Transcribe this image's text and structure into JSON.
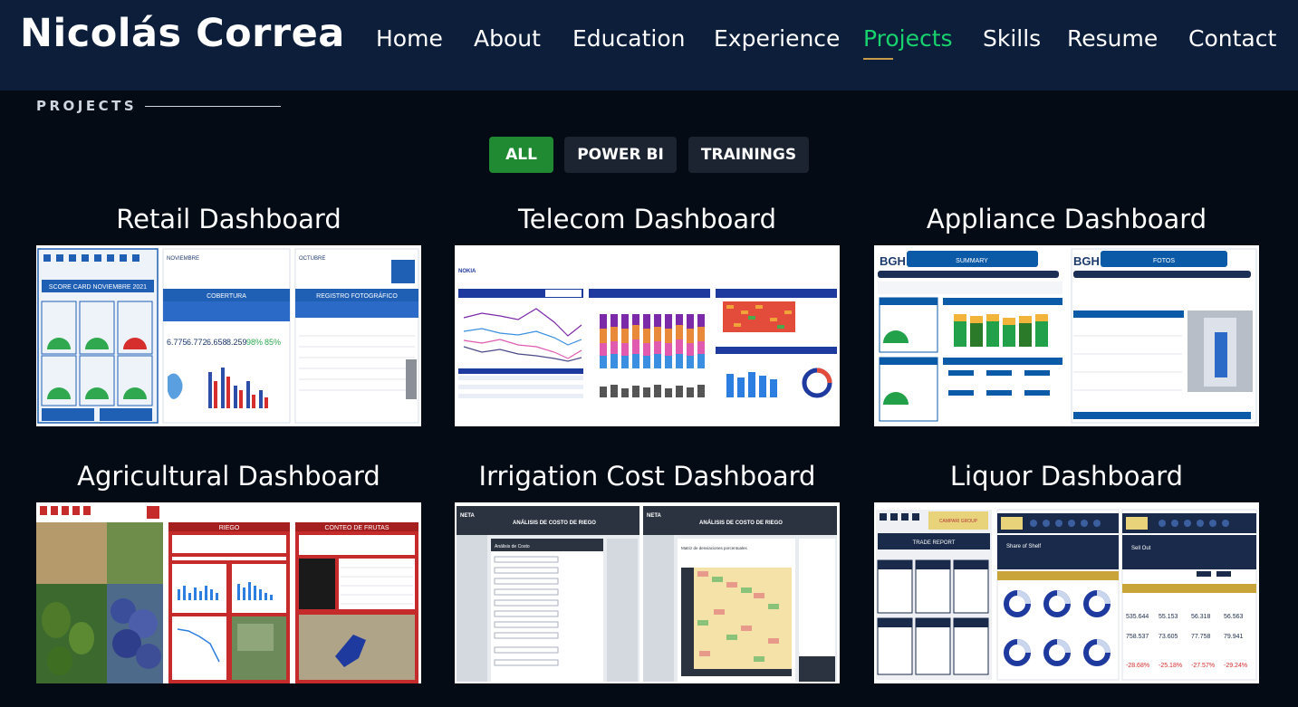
{
  "header": {
    "brand": "Nicolás Correa",
    "nav": [
      {
        "label": "Home",
        "active": false
      },
      {
        "label": "About",
        "active": false
      },
      {
        "label": "Education",
        "active": false
      },
      {
        "label": "Experience",
        "active": false
      },
      {
        "label": "Projects",
        "active": true
      },
      {
        "label": "Skills",
        "active": false
      },
      {
        "label": "Resume",
        "active": false
      },
      {
        "label": "Contact",
        "active": false
      }
    ]
  },
  "section": {
    "title": "PROJECTS"
  },
  "filters": [
    {
      "label": "ALL",
      "active": true
    },
    {
      "label": "POWER BI",
      "active": false
    },
    {
      "label": "TRAININGS",
      "active": false
    }
  ],
  "projects": [
    {
      "title": "Retail Dashboard",
      "thumb_header": "SCORE CARD NOVIEMBRE 2021",
      "thumb_panel_2": "COBERTURA",
      "thumb_panel_3": "REGISTRO FOTOGRÁFICO",
      "thumb_month_2": "NOVIEMBRE",
      "thumb_month_3": "OCTUBRE"
    },
    {
      "title": "Telecom Dashboard",
      "thumb_brand": "NOKIA"
    },
    {
      "title": "Appliance Dashboard",
      "thumb_brand": "BGH",
      "thumb_panel_1": "SUMMARY",
      "thumb_panel_2": "FOTOS"
    },
    {
      "title": "Agricultural Dashboard",
      "thumb_panel_2": "RIEGO",
      "thumb_panel_3": "CONTEO DE FRUTAS"
    },
    {
      "title": "Irrigation Cost Dashboard",
      "thumb_brand": "NETA",
      "thumb_panel_1": "ANÁLISIS DE COSTO DE RIEGO",
      "thumb_panel_2": "ANÁLISIS DE COSTO DE RIEGO",
      "thumb_sub_1": "Análisis de Costo",
      "thumb_sub_2": "Matriz de desviaciones porcentuales"
    },
    {
      "title": "Liquor Dashboard",
      "thumb_panel_1": "TRADE REPORT",
      "thumb_brand": "CAMPARI GROUP",
      "thumb_sub_2": "Share of Shelf",
      "thumb_sub_3": "Sell Out"
    }
  ],
  "colors": {
    "header_bg": "#0c1e3a",
    "page_bg": "#040b14",
    "accent_green": "#18d26e",
    "filter_active": "#1f8a32"
  }
}
